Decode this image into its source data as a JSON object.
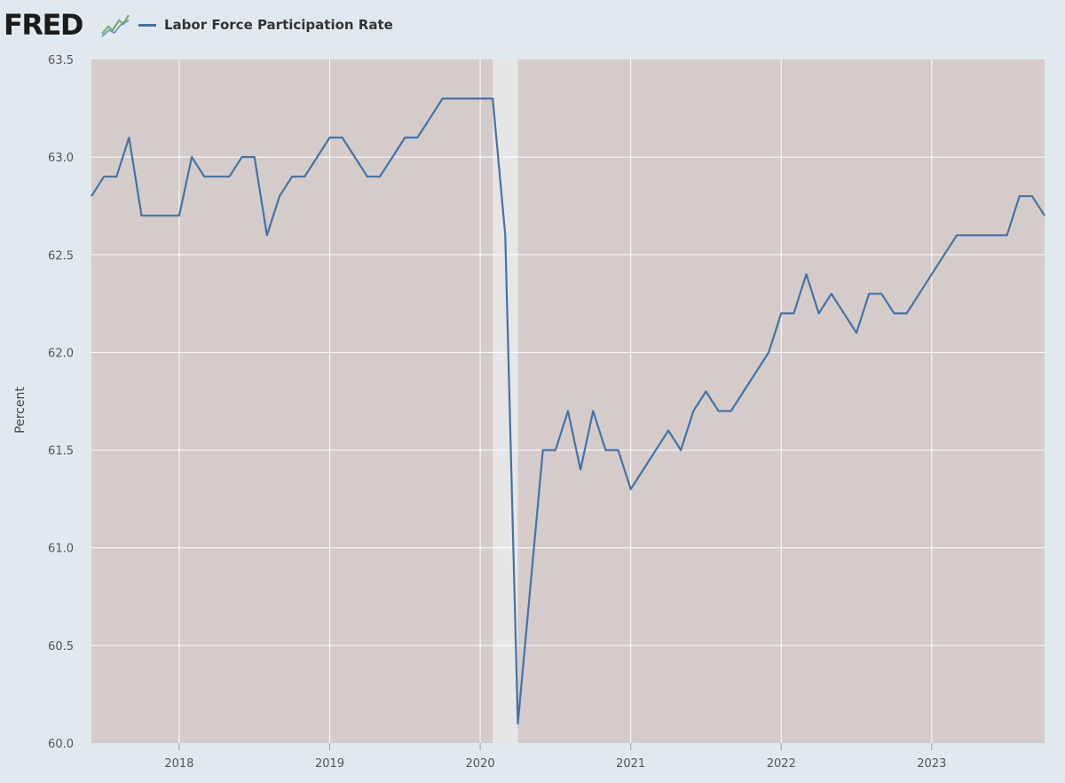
{
  "header": {
    "logo": "FRED",
    "logo_icon": "line-chart-icon"
  },
  "colors": {
    "background": "#e1e9f0",
    "plot_background": "#d5cbcb",
    "recession_band": "#e6e6e6",
    "series_line": "#4572a7",
    "gridline": "#ffffff"
  },
  "chart_data": {
    "type": "line",
    "title": "",
    "xlabel": "",
    "ylabel": "Percent",
    "ylim": [
      60.0,
      63.5
    ],
    "xlim": [
      "2017-06",
      "2023-10"
    ],
    "y_ticks": [
      "60.0",
      "60.5",
      "61.0",
      "61.5",
      "62.0",
      "62.5",
      "63.0",
      "63.5"
    ],
    "x_ticks": [
      "2018",
      "2019",
      "2020",
      "2021",
      "2022",
      "2023"
    ],
    "grid": true,
    "legend_position": "top-left",
    "recessions": [
      [
        "2020-02",
        "2020-04"
      ]
    ],
    "series": [
      {
        "name": "Labor Force Participation Rate",
        "color": "#4572a7",
        "points": [
          [
            "2017-06",
            62.8
          ],
          [
            "2017-07",
            62.9
          ],
          [
            "2017-08",
            62.9
          ],
          [
            "2017-09",
            63.1
          ],
          [
            "2017-10",
            62.7
          ],
          [
            "2017-11",
            62.7
          ],
          [
            "2017-12",
            62.7
          ],
          [
            "2018-01",
            62.7
          ],
          [
            "2018-02",
            63.0
          ],
          [
            "2018-03",
            62.9
          ],
          [
            "2018-04",
            62.9
          ],
          [
            "2018-05",
            62.9
          ],
          [
            "2018-06",
            63.0
          ],
          [
            "2018-07",
            63.0
          ],
          [
            "2018-08",
            62.6
          ],
          [
            "2018-09",
            62.8
          ],
          [
            "2018-10",
            62.9
          ],
          [
            "2018-11",
            62.9
          ],
          [
            "2018-12",
            63.0
          ],
          [
            "2019-01",
            63.1
          ],
          [
            "2019-02",
            63.1
          ],
          [
            "2019-03",
            63.0
          ],
          [
            "2019-04",
            62.9
          ],
          [
            "2019-05",
            62.9
          ],
          [
            "2019-06",
            63.0
          ],
          [
            "2019-07",
            63.1
          ],
          [
            "2019-08",
            63.1
          ],
          [
            "2019-09",
            63.2
          ],
          [
            "2019-10",
            63.3
          ],
          [
            "2019-11",
            63.3
          ],
          [
            "2019-12",
            63.3
          ],
          [
            "2020-01",
            63.3
          ],
          [
            "2020-02",
            63.3
          ],
          [
            "2020-03",
            62.6
          ],
          [
            "2020-04",
            60.1
          ],
          [
            "2020-05",
            60.8
          ],
          [
            "2020-06",
            61.5
          ],
          [
            "2020-07",
            61.5
          ],
          [
            "2020-08",
            61.7
          ],
          [
            "2020-09",
            61.4
          ],
          [
            "2020-10",
            61.7
          ],
          [
            "2020-11",
            61.5
          ],
          [
            "2020-12",
            61.5
          ],
          [
            "2021-01",
            61.3
          ],
          [
            "2021-02",
            61.4
          ],
          [
            "2021-03",
            61.5
          ],
          [
            "2021-04",
            61.6
          ],
          [
            "2021-05",
            61.5
          ],
          [
            "2021-06",
            61.7
          ],
          [
            "2021-07",
            61.8
          ],
          [
            "2021-08",
            61.7
          ],
          [
            "2021-09",
            61.7
          ],
          [
            "2021-10",
            61.8
          ],
          [
            "2021-11",
            61.9
          ],
          [
            "2021-12",
            62.0
          ],
          [
            "2022-01",
            62.2
          ],
          [
            "2022-02",
            62.2
          ],
          [
            "2022-03",
            62.4
          ],
          [
            "2022-04",
            62.2
          ],
          [
            "2022-05",
            62.3
          ],
          [
            "2022-06",
            62.2
          ],
          [
            "2022-07",
            62.1
          ],
          [
            "2022-08",
            62.3
          ],
          [
            "2022-09",
            62.3
          ],
          [
            "2022-10",
            62.2
          ],
          [
            "2022-11",
            62.2
          ],
          [
            "2022-12",
            62.3
          ],
          [
            "2023-01",
            62.4
          ],
          [
            "2023-02",
            62.5
          ],
          [
            "2023-03",
            62.6
          ],
          [
            "2023-04",
            62.6
          ],
          [
            "2023-05",
            62.6
          ],
          [
            "2023-06",
            62.6
          ],
          [
            "2023-07",
            62.6
          ],
          [
            "2023-08",
            62.8
          ],
          [
            "2023-09",
            62.8
          ],
          [
            "2023-10",
            62.7
          ]
        ]
      }
    ]
  }
}
